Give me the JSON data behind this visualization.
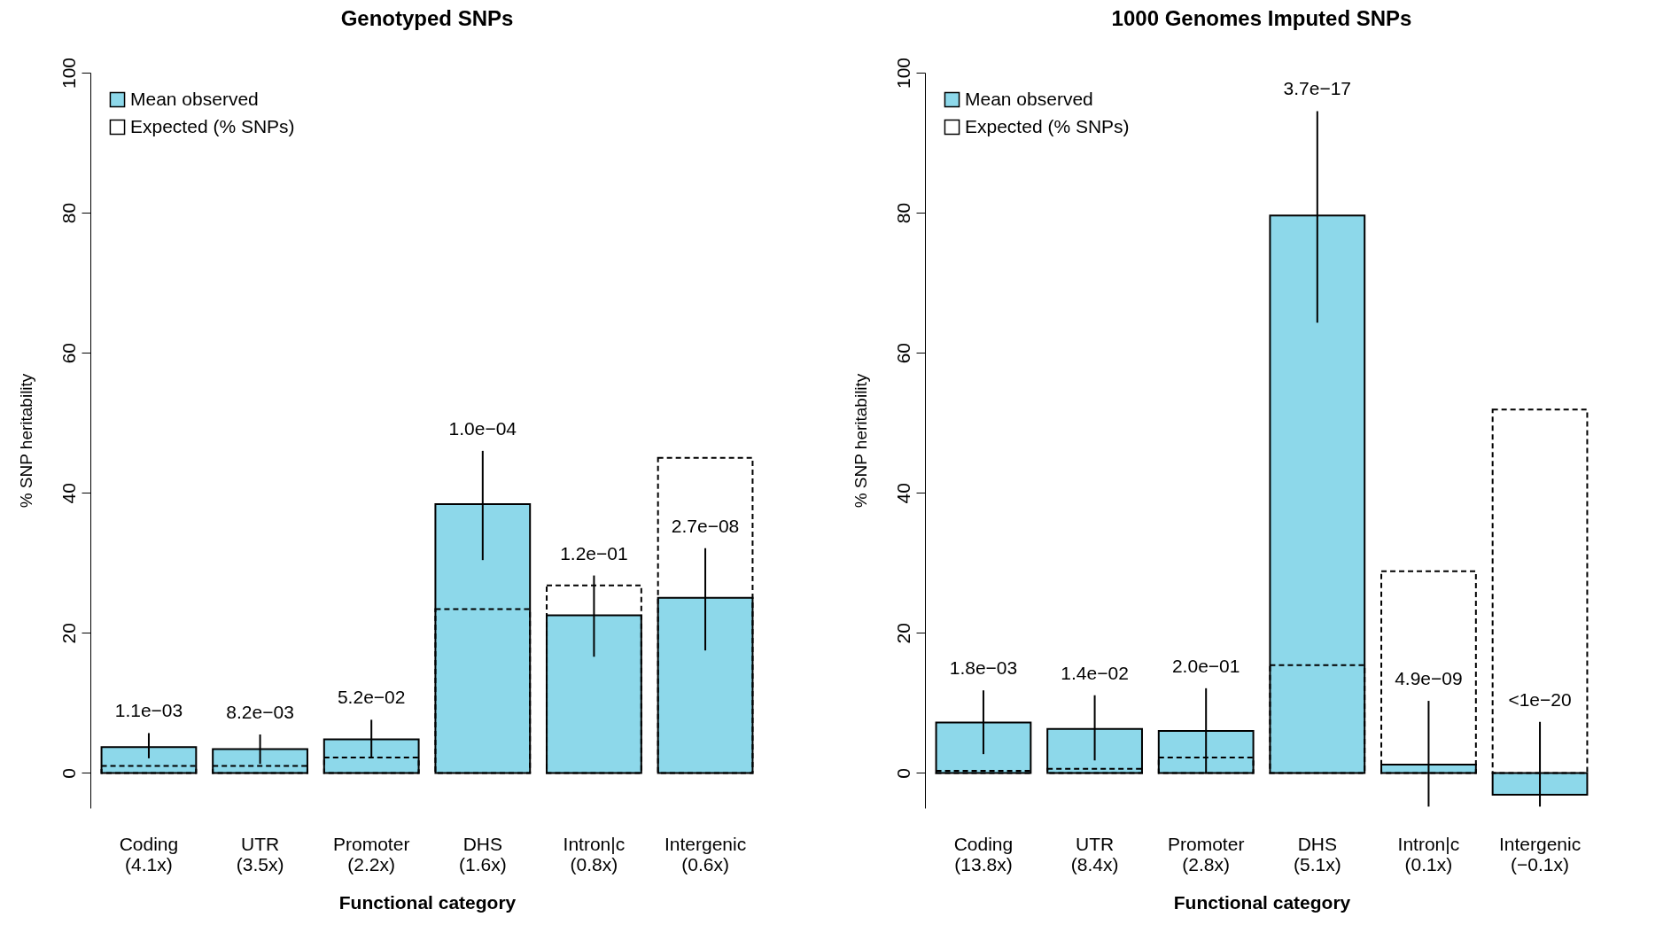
{
  "chart_data": [
    {
      "type": "bar",
      "title": "Genotyped SNPs",
      "xlabel": "Functional category",
      "ylabel": "% SNP heritability",
      "categories": [
        "Coding\n(4.1x)",
        "UTR\n(3.5x)",
        "Promoter\n(2.2x)",
        "DHS\n(1.6x)",
        "Intron|c\n(0.8x)",
        "Intergenic\n(0.6x)"
      ],
      "ylim": [
        -5,
        100
      ],
      "yticks": [
        0,
        20,
        40,
        60,
        80,
        100
      ],
      "legend": "top left",
      "grid": false,
      "series": [
        {
          "name": "Mean observed",
          "color": "#8dd8ea",
          "values": [
            3.7,
            3.4,
            4.8,
            38.4,
            22.5,
            25.0
          ],
          "errors": [
            [
              2.1,
              5.7
            ],
            [
              1.3,
              5.5
            ],
            [
              2.1,
              7.6
            ],
            [
              30.4,
              46.0
            ],
            [
              16.6,
              28.2
            ],
            [
              17.5,
              32.1
            ]
          ]
        },
        {
          "name": "Expected (% SNPs)",
          "color": "#000000",
          "line_style": "dashed",
          "values": [
            1.0,
            1.0,
            2.2,
            23.4,
            26.8,
            45.0
          ]
        }
      ],
      "annotations": [
        {
          "text": "1.1e−03",
          "x": "Coding\n(4.1x)",
          "y": 5.7
        },
        {
          "text": "8.2e−03",
          "x": "UTR\n(3.5x)",
          "y": 5.5
        },
        {
          "text": "5.2e−02",
          "x": "Promoter\n(2.2x)",
          "y": 7.6
        },
        {
          "text": "1.0e−04",
          "x": "DHS\n(1.6x)",
          "y": 46.0
        },
        {
          "text": "1.2e−01",
          "x": "Intron|c\n(0.8x)",
          "y": 28.2
        },
        {
          "text": "2.7e−08",
          "x": "Intergenic\n(0.6x)",
          "y": 32.1
        }
      ]
    },
    {
      "type": "bar",
      "title": "1000 Genomes Imputed SNPs",
      "xlabel": "Functional category",
      "ylabel": "% SNP heritability",
      "categories": [
        "Coding\n(13.8x)",
        "UTR\n(8.4x)",
        "Promoter\n(2.8x)",
        "DHS\n(5.1x)",
        "Intron|c\n(0.1x)",
        "Intergenic\n(−0.1x)"
      ],
      "ylim": [
        -5,
        100
      ],
      "yticks": [
        0,
        20,
        40,
        60,
        80,
        100
      ],
      "legend": "top left",
      "grid": false,
      "series": [
        {
          "name": "Mean observed",
          "color": "#8dd8ea",
          "values": [
            7.2,
            6.3,
            6.0,
            79.6,
            1.2,
            -3.1
          ],
          "errors": [
            [
              2.7,
              11.8
            ],
            [
              1.8,
              11.1
            ],
            [
              -0.1,
              12.1
            ],
            [
              64.3,
              94.5
            ],
            [
              -4.8,
              10.3
            ],
            [
              -4.8,
              7.3
            ]
          ]
        },
        {
          "name": "Expected (% SNPs)",
          "color": "#000000",
          "line_style": "dashed",
          "values": [
            0.3,
            0.6,
            2.2,
            15.4,
            28.8,
            51.9
          ]
        }
      ],
      "annotations": [
        {
          "text": "1.8e−03",
          "x": "Coding\n(13.8x)",
          "y": 11.8
        },
        {
          "text": "1.4e−02",
          "x": "UTR\n(8.4x)",
          "y": 11.1
        },
        {
          "text": "2.0e−01",
          "x": "Promoter\n(2.8x)",
          "y": 12.1
        },
        {
          "text": "3.7e−17",
          "x": "DHS\n(5.1x)",
          "y": 94.5
        },
        {
          "text": "4.9e−09",
          "x": "Intron|c\n(0.1x)",
          "y": 10.3
        },
        {
          "text": "<1e−20",
          "x": "Intergenic\n(−0.1x)",
          "y": 7.3
        }
      ]
    }
  ]
}
